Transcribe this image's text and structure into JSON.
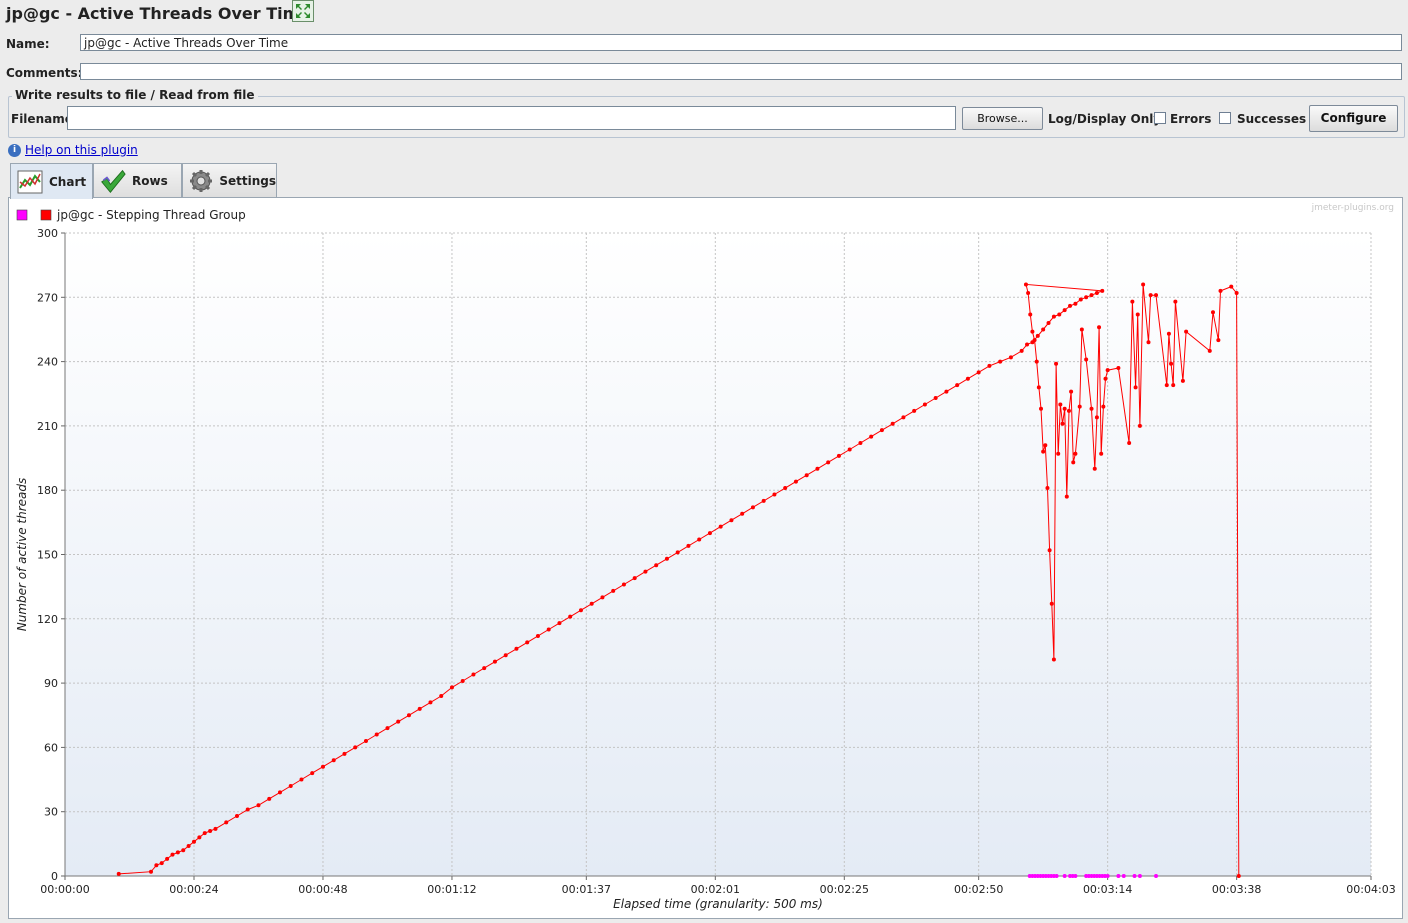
{
  "window": {
    "title": "jp@gc - Active Threads Over Time"
  },
  "form": {
    "name_label": "Name:",
    "name_value": "jp@gc - Active Threads Over Time",
    "comments_label": "Comments:",
    "comments_value": ""
  },
  "file_group": {
    "title": "Write results to file / Read from file",
    "filename_label": "Filename",
    "filename_value": "",
    "browse_label": "Browse...",
    "log_display_label": "Log/Display Only:",
    "errors_label": "Errors",
    "successes_label": "Successes",
    "configure_label": "Configure"
  },
  "help": {
    "link_text": "Help on this plugin"
  },
  "tabs": [
    {
      "label": "Chart",
      "icon": "chart-icon",
      "active": true
    },
    {
      "label": "Rows",
      "icon": "checkmark-icon",
      "active": false
    },
    {
      "label": "Settings",
      "icon": "gear-icon",
      "active": false
    }
  ],
  "chart_data": {
    "type": "line",
    "watermark": "jmeter-plugins.org",
    "xlabel": "Elapsed time (granularity: 500 ms)",
    "ylabel": "Number of active threads",
    "ylim": [
      0,
      300
    ],
    "yticks": [
      0,
      30,
      60,
      90,
      120,
      150,
      180,
      210,
      240,
      270,
      300
    ],
    "xlim_seconds": [
      0,
      243
    ],
    "xticks": [
      {
        "s": 0,
        "label": "00:00:00"
      },
      {
        "s": 24,
        "label": "00:00:24"
      },
      {
        "s": 48,
        "label": "00:00:48"
      },
      {
        "s": 72,
        "label": "00:01:12"
      },
      {
        "s": 97,
        "label": "00:01:37"
      },
      {
        "s": 121,
        "label": "00:02:01"
      },
      {
        "s": 145,
        "label": "00:02:25"
      },
      {
        "s": 170,
        "label": "00:02:50"
      },
      {
        "s": 194,
        "label": "00:03:14"
      },
      {
        "s": 218,
        "label": "00:03:38"
      },
      {
        "s": 243,
        "label": "00:04:03"
      }
    ],
    "grid": true,
    "legend_position": "top-left",
    "series": [
      {
        "name": "",
        "color": "#ff00ff",
        "points": [
          [
            179.5,
            0
          ],
          [
            180,
            0
          ],
          [
            180.5,
            0
          ],
          [
            181,
            0
          ],
          [
            181.5,
            0
          ],
          [
            182,
            0
          ],
          [
            182.5,
            0
          ],
          [
            183,
            0
          ],
          [
            183.5,
            0
          ],
          [
            184,
            0
          ],
          [
            184.5,
            0
          ],
          [
            186,
            0
          ],
          [
            187,
            0
          ],
          [
            187.5,
            0
          ],
          [
            188,
            0
          ],
          [
            190,
            0
          ],
          [
            190.5,
            0
          ],
          [
            191,
            0
          ],
          [
            191.5,
            0
          ],
          [
            192,
            0
          ],
          [
            192.5,
            0
          ],
          [
            193,
            0
          ],
          [
            193.5,
            0
          ],
          [
            194,
            0
          ],
          [
            196,
            0
          ],
          [
            197,
            0
          ],
          [
            199,
            0
          ],
          [
            200,
            0
          ],
          [
            203,
            0
          ]
        ]
      },
      {
        "name": "jp@gc - Stepping Thread Group",
        "color": "#ff0000",
        "points": [
          [
            10,
            1
          ],
          [
            16,
            2
          ],
          [
            17,
            5
          ],
          [
            18,
            6
          ],
          [
            19,
            8
          ],
          [
            20,
            10
          ],
          [
            21,
            11
          ],
          [
            22,
            12
          ],
          [
            23,
            14
          ],
          [
            24,
            16
          ],
          [
            25,
            18
          ],
          [
            26,
            20
          ],
          [
            27,
            21
          ],
          [
            28,
            22
          ],
          [
            30,
            25
          ],
          [
            32,
            28
          ],
          [
            34,
            31
          ],
          [
            36,
            33
          ],
          [
            38,
            36
          ],
          [
            40,
            39
          ],
          [
            42,
            42
          ],
          [
            44,
            45
          ],
          [
            46,
            48
          ],
          [
            48,
            51
          ],
          [
            50,
            54
          ],
          [
            52,
            57
          ],
          [
            54,
            60
          ],
          [
            56,
            63
          ],
          [
            58,
            66
          ],
          [
            60,
            69
          ],
          [
            62,
            72
          ],
          [
            64,
            75
          ],
          [
            66,
            78
          ],
          [
            68,
            81
          ],
          [
            70,
            84
          ],
          [
            72,
            88
          ],
          [
            74,
            91
          ],
          [
            76,
            94
          ],
          [
            78,
            97
          ],
          [
            80,
            100
          ],
          [
            82,
            103
          ],
          [
            84,
            106
          ],
          [
            86,
            109
          ],
          [
            88,
            112
          ],
          [
            90,
            115
          ],
          [
            92,
            118
          ],
          [
            94,
            121
          ],
          [
            96,
            124
          ],
          [
            98,
            127
          ],
          [
            100,
            130
          ],
          [
            102,
            133
          ],
          [
            104,
            136
          ],
          [
            106,
            139
          ],
          [
            108,
            142
          ],
          [
            110,
            145
          ],
          [
            112,
            148
          ],
          [
            114,
            151
          ],
          [
            116,
            154
          ],
          [
            118,
            157
          ],
          [
            120,
            160
          ],
          [
            122,
            163
          ],
          [
            124,
            166
          ],
          [
            126,
            169
          ],
          [
            128,
            172
          ],
          [
            130,
            175
          ],
          [
            132,
            178
          ],
          [
            134,
            181
          ],
          [
            136,
            184
          ],
          [
            138,
            187
          ],
          [
            140,
            190
          ],
          [
            142,
            193
          ],
          [
            144,
            196
          ],
          [
            146,
            199
          ],
          [
            148,
            202
          ],
          [
            150,
            205
          ],
          [
            152,
            208
          ],
          [
            154,
            211
          ],
          [
            156,
            214
          ],
          [
            158,
            217
          ],
          [
            160,
            220
          ],
          [
            162,
            223
          ],
          [
            164,
            226
          ],
          [
            166,
            229
          ],
          [
            168,
            232
          ],
          [
            170,
            235
          ],
          [
            172,
            238
          ],
          [
            174,
            240
          ],
          [
            176,
            242
          ],
          [
            178,
            245
          ],
          [
            179,
            248
          ],
          [
            180,
            249
          ],
          [
            181,
            252
          ],
          [
            182,
            255
          ],
          [
            183,
            258
          ],
          [
            184,
            261
          ],
          [
            185,
            262
          ],
          [
            186,
            264
          ],
          [
            187,
            266
          ],
          [
            188,
            267
          ],
          [
            189,
            269
          ],
          [
            190,
            270
          ],
          [
            191,
            271
          ],
          [
            192,
            272
          ],
          [
            193,
            273
          ],
          [
            178.8,
            276
          ],
          [
            179.2,
            272
          ],
          [
            179.6,
            262
          ],
          [
            180,
            254
          ],
          [
            180.4,
            250
          ],
          [
            180.8,
            240
          ],
          [
            181.2,
            228
          ],
          [
            181.6,
            218
          ],
          [
            182,
            198
          ],
          [
            182.4,
            201
          ],
          [
            182.8,
            181
          ],
          [
            183.2,
            152
          ],
          [
            183.6,
            127
          ],
          [
            184,
            101
          ],
          [
            184.4,
            239
          ],
          [
            184.8,
            197
          ],
          [
            185.2,
            220
          ],
          [
            185.6,
            211
          ],
          [
            186,
            218
          ],
          [
            186.4,
            177
          ],
          [
            186.8,
            217
          ],
          [
            187.2,
            226
          ],
          [
            187.6,
            193
          ],
          [
            188,
            197
          ],
          [
            188.8,
            219
          ],
          [
            189.2,
            255
          ],
          [
            190,
            241
          ],
          [
            191,
            218
          ],
          [
            191.6,
            190
          ],
          [
            192,
            214
          ],
          [
            192.4,
            256
          ],
          [
            192.8,
            197
          ],
          [
            193.2,
            219
          ],
          [
            193.6,
            232
          ],
          [
            194,
            236
          ],
          [
            196,
            237
          ],
          [
            198,
            202
          ],
          [
            198.6,
            268
          ],
          [
            199.2,
            228
          ],
          [
            199.6,
            262
          ],
          [
            200,
            210
          ],
          [
            200.6,
            276
          ],
          [
            201.6,
            249
          ],
          [
            202,
            271
          ],
          [
            203,
            271
          ],
          [
            205,
            229
          ],
          [
            205.4,
            253
          ],
          [
            205.8,
            239
          ],
          [
            206.2,
            229
          ],
          [
            206.6,
            268
          ],
          [
            208,
            231
          ],
          [
            208.6,
            254
          ],
          [
            213,
            245
          ],
          [
            213.6,
            263
          ],
          [
            214.6,
            250
          ],
          [
            215,
            273
          ],
          [
            217,
            275
          ],
          [
            218,
            272
          ],
          [
            218.4,
            0
          ]
        ]
      }
    ]
  }
}
